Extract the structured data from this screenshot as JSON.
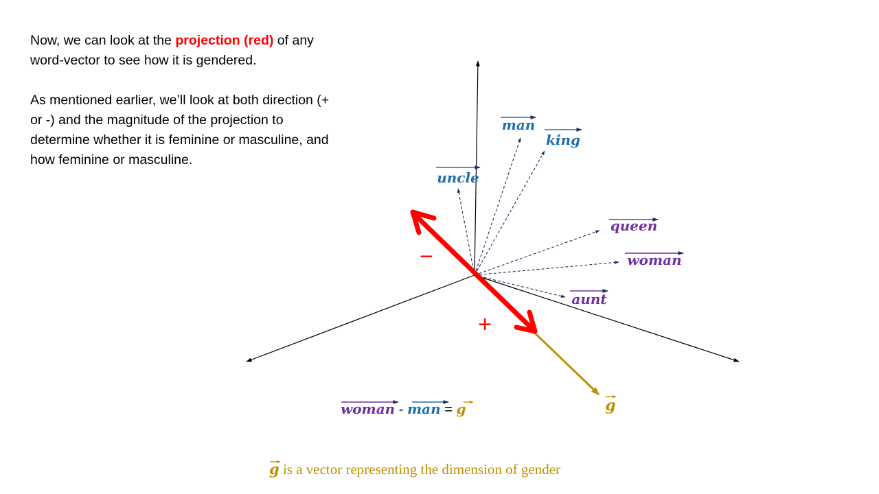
{
  "slide": {
    "para1": {
      "before": "Now, we can look at the ",
      "highlight": "projection (red)",
      "after": " of any word-vector to see how it is gendered."
    },
    "para2": "As mentioned earlier, we’ll look at both direction (+ or -) and the magnitude of the projection to determine whether it is feminine or masculine, and how feminine or masculine.",
    "caption": {
      "symbol": "g",
      "text": " is a vector representing the dimension of gender"
    }
  },
  "diagram": {
    "word_vectors": [
      {
        "word": "man",
        "group": "male"
      },
      {
        "word": "king",
        "group": "male"
      },
      {
        "word": "uncle",
        "group": "male"
      },
      {
        "word": "queen",
        "group": "female"
      },
      {
        "word": "woman",
        "group": "female"
      },
      {
        "word": "aunt",
        "group": "female"
      }
    ],
    "gender_vector_symbol": "g",
    "projection_signs": {
      "negative": "−",
      "positive": "+"
    },
    "equation": {
      "left": "woman",
      "minus": " - ",
      "middle": "man",
      "equals": " = ",
      "right": "g"
    },
    "colors": {
      "male": "#1f6fb0",
      "female": "#7030a0",
      "gender": "#bf9000",
      "projection": "#ff0000",
      "dashed_arrow": "#1f2a5c",
      "axes": "#000000"
    }
  }
}
